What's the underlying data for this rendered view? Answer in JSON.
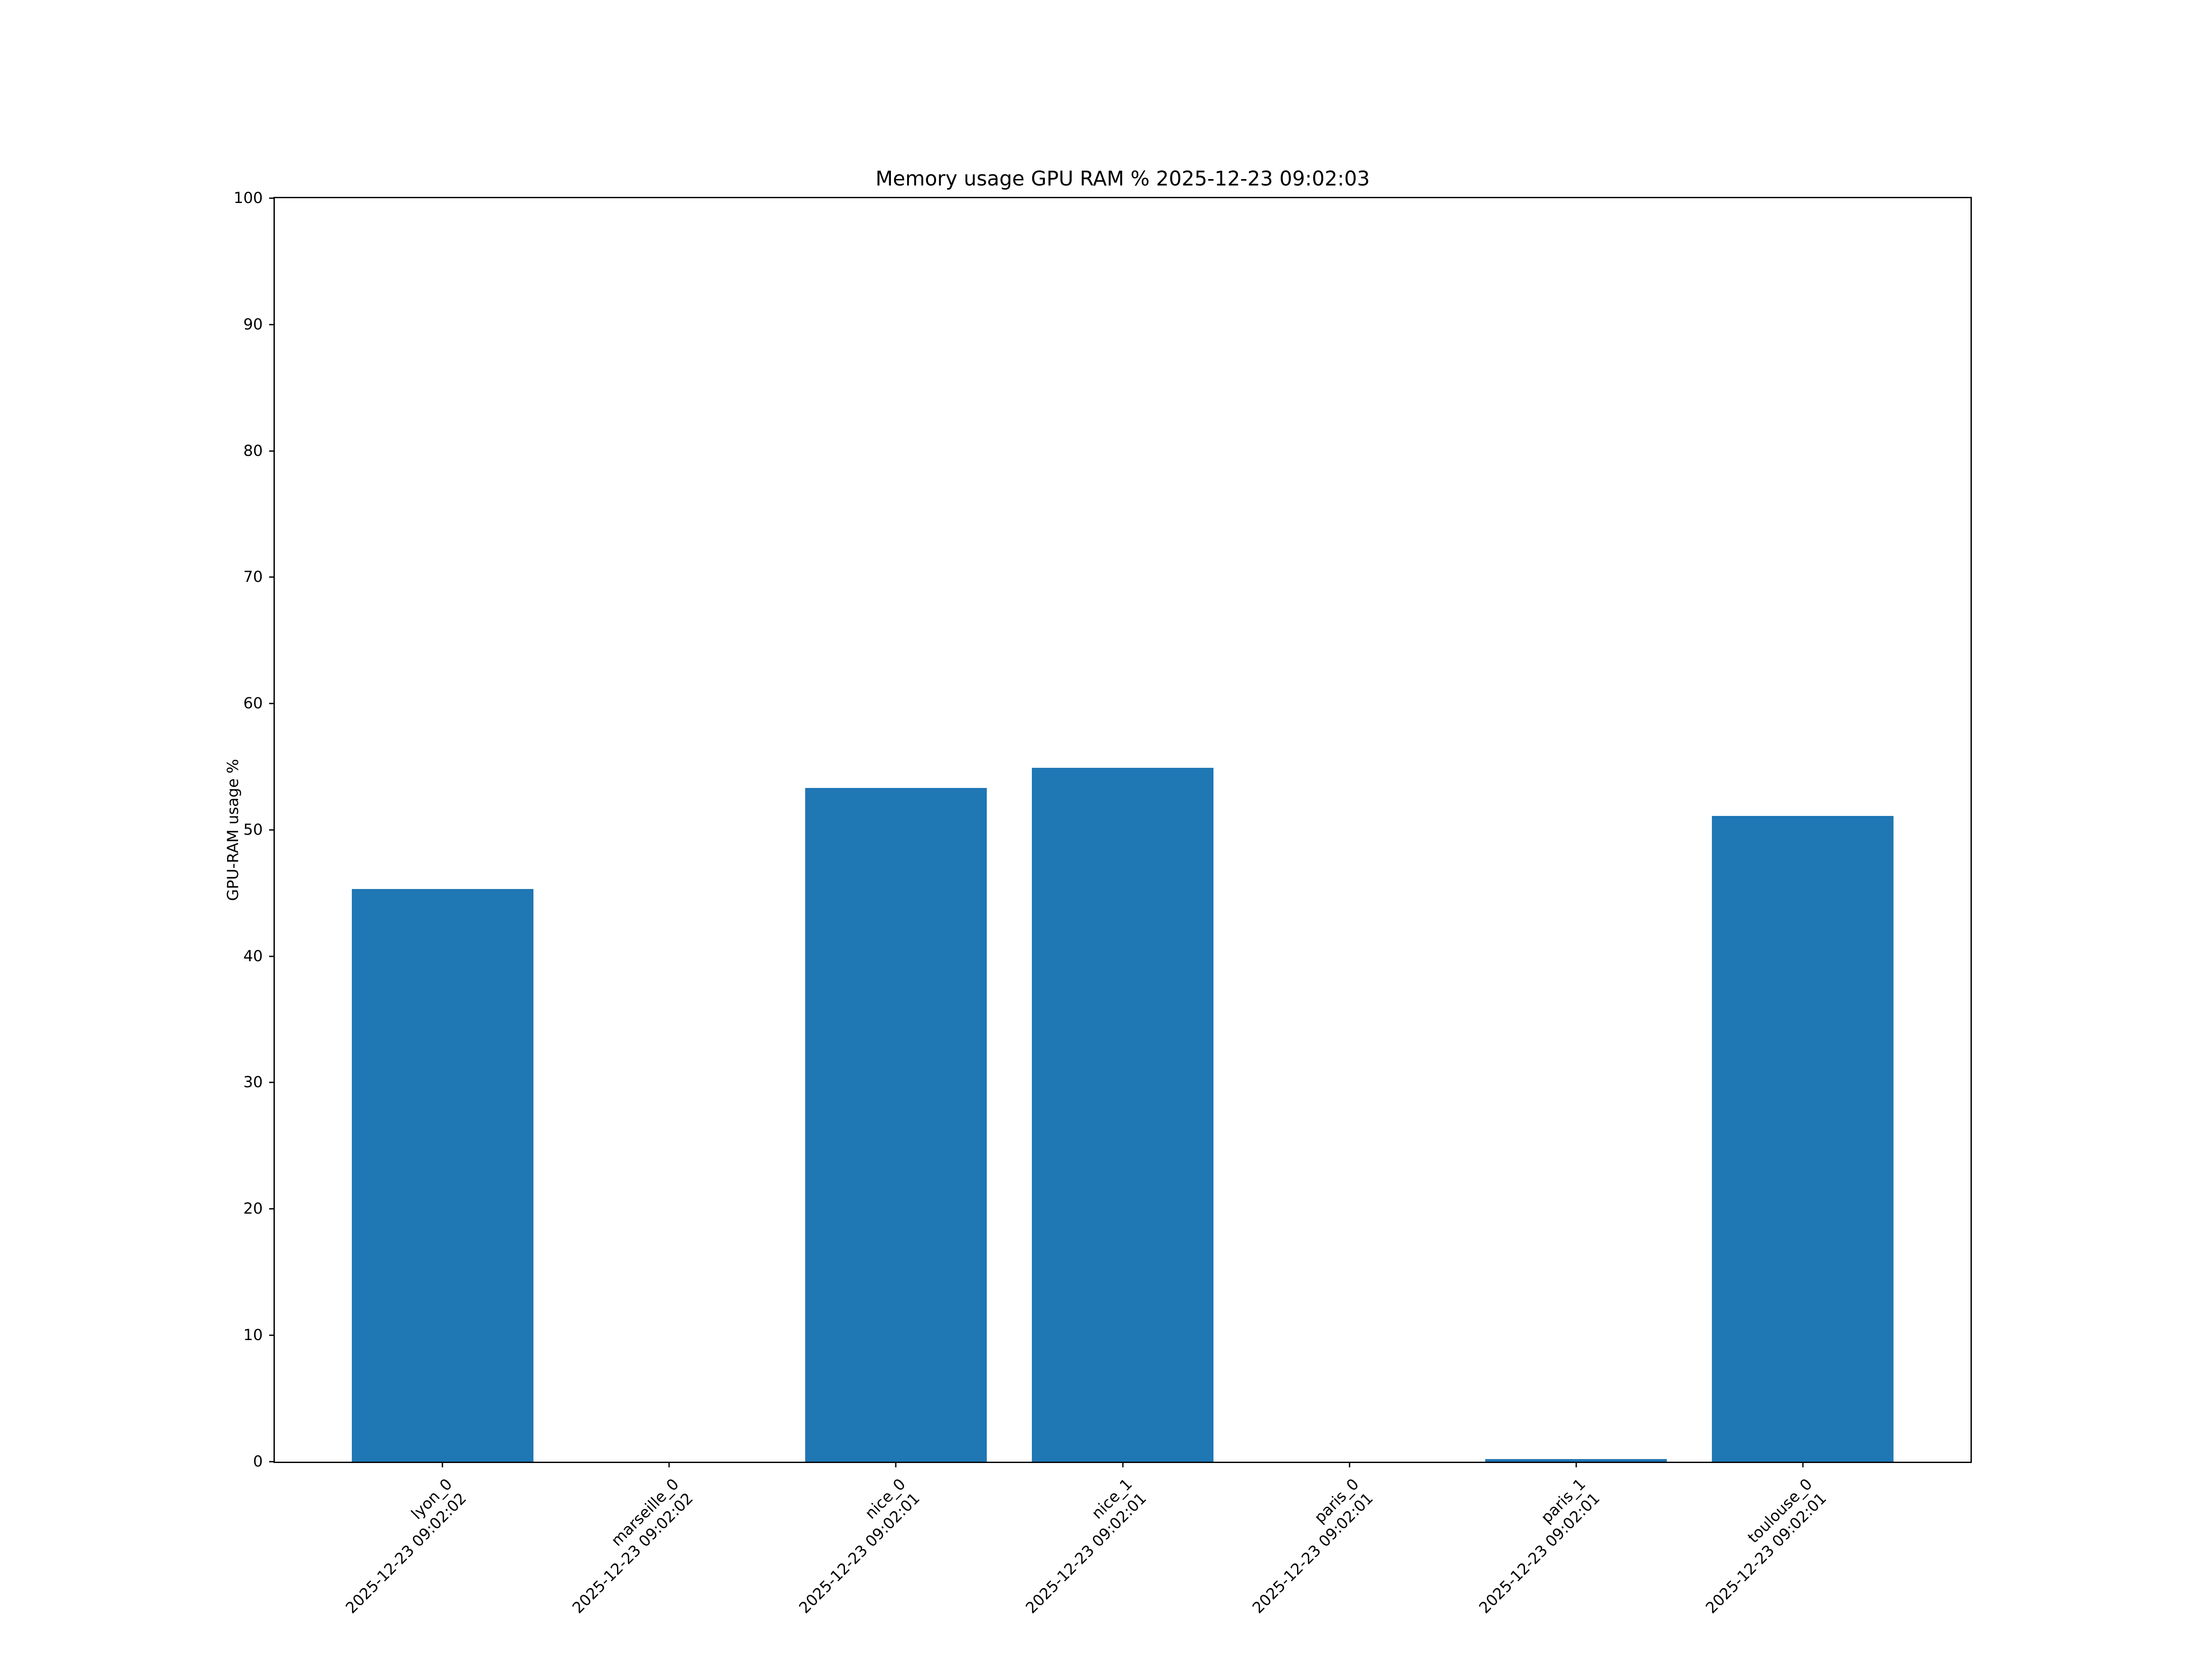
{
  "chart_data": {
    "type": "bar",
    "title": "Memory usage GPU RAM % 2025-12-23 09:02:03",
    "xlabel": "",
    "ylabel": "GPU-RAM usage %",
    "ylim": [
      0,
      100
    ],
    "yticks": [
      0,
      10,
      20,
      30,
      40,
      50,
      60,
      70,
      80,
      90,
      100
    ],
    "grid": false,
    "legend": false,
    "bar_color": "#1f77b4",
    "background_color": "#ffffff",
    "categories": [
      "lyon_0",
      "marseille_0",
      "nice_0",
      "nice_1",
      "paris_0",
      "paris_1",
      "toulouse_0"
    ],
    "category_timestamps": [
      "2025-12-23 09:02:02",
      "2025-12-23 09:02:02",
      "2025-12-23 09:02:01",
      "2025-12-23 09:02:01",
      "2025-12-23 09:02:01",
      "2025-12-23 09:02:01",
      "2025-12-23 09:02:01"
    ],
    "values": [
      45.3,
      0.0,
      53.3,
      54.9,
      0.0,
      0.2,
      51.1
    ]
  }
}
